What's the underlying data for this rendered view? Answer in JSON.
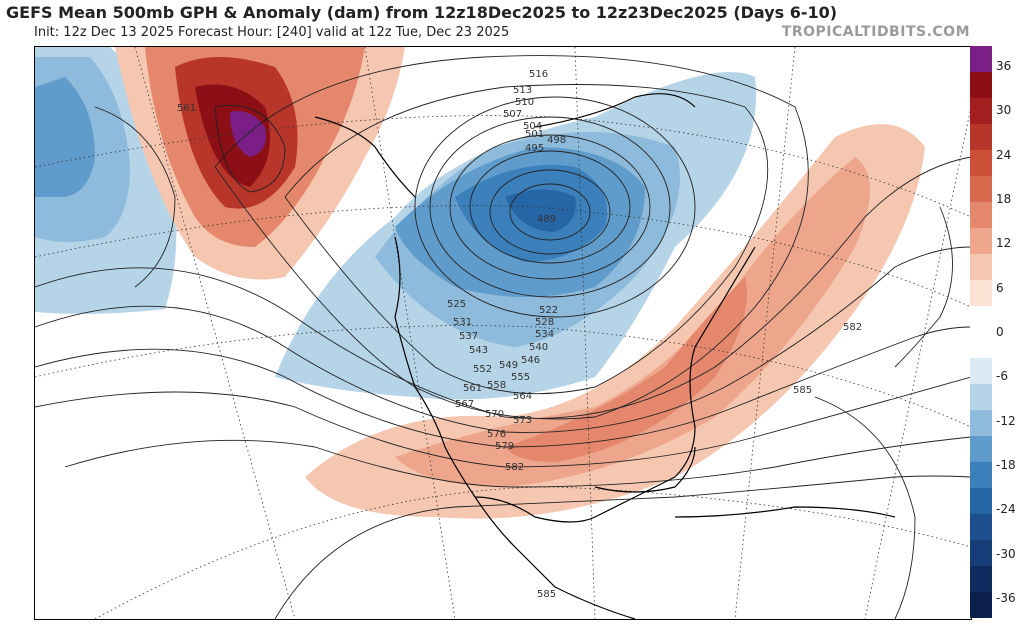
{
  "header": {
    "title": "GEFS Mean 500mb GPH & Anomaly (dam) from 12z18Dec2025 to 12z23Dec2025 (Days 6-10)",
    "subtitle": "Init: 12z Dec 13 2025   Forecast Hour: [240]   valid at 12z Tue, Dec 23 2025",
    "brand": "TROPICALTIDBITS.COM"
  },
  "legend": {
    "ticks": [
      "36",
      "30",
      "24",
      "18",
      "12",
      "6",
      "0",
      "-6",
      "-12",
      "-18",
      "-24",
      "-30",
      "-36"
    ],
    "colors": [
      "#7b1f87",
      "#8b0f15",
      "#a31f1f",
      "#b8352a",
      "#cc5038",
      "#d9694c",
      "#e4876c",
      "#eda68c",
      "#f5c7b0",
      "#fbe3d4",
      "#ffffff",
      "#ffffff",
      "#dbeaf3",
      "#b5d4e8",
      "#8ebbdb",
      "#5f9ccb",
      "#3b7fbb",
      "#2766a6",
      "#1d4f8f",
      "#163d78",
      "#0f2c61",
      "#0a1f4c"
    ]
  },
  "contour_labels": [
    "516",
    "513",
    "510",
    "507",
    "504",
    "501",
    "498",
    "495",
    "489",
    "561",
    "525",
    "522",
    "528",
    "531",
    "534",
    "537",
    "540",
    "543",
    "546",
    "549",
    "552",
    "555",
    "558",
    "561",
    "564",
    "567",
    "570",
    "573",
    "576",
    "579",
    "582",
    "582",
    "585",
    "585"
  ]
}
